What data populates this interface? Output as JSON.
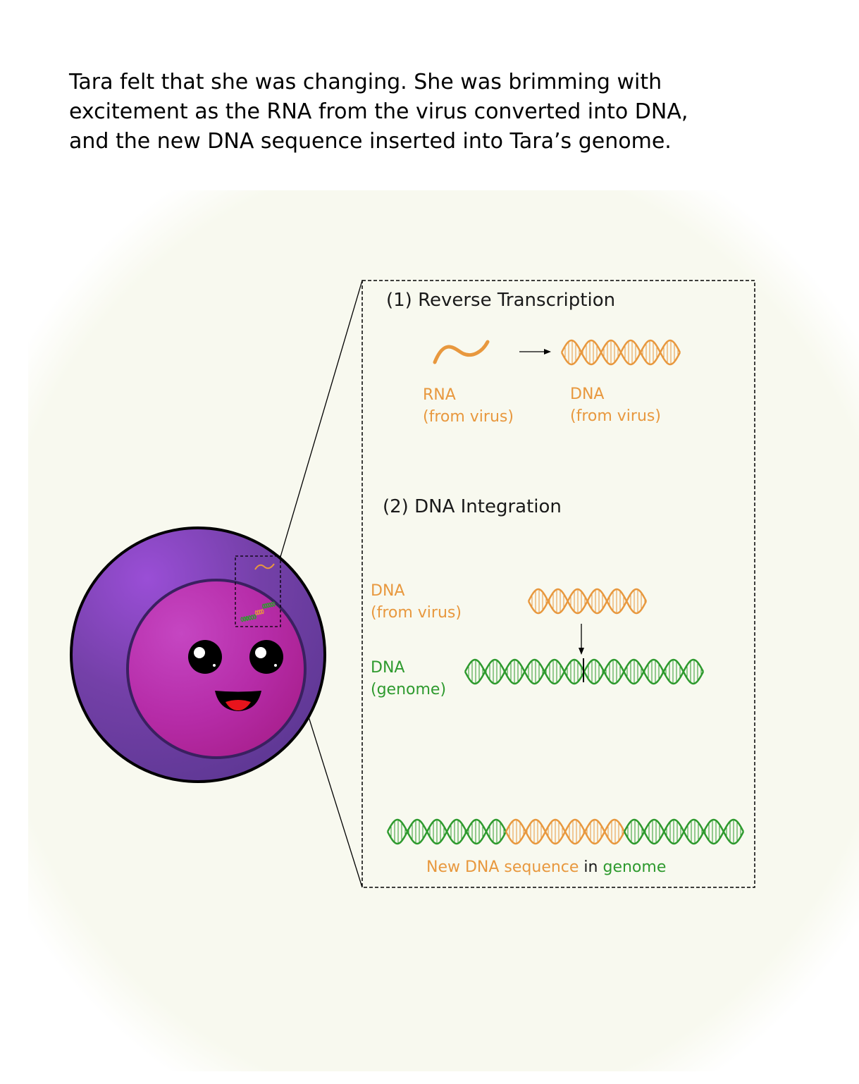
{
  "caption": {
    "line1": "Tara felt that she was changing. She was brimming with",
    "line2": "excitement as the RNA from the virus converted into DNA,",
    "line3": "and the new DNA sequence inserted into Tara’s genome."
  },
  "colors": {
    "virus": "#e8983e",
    "genome": "#2e9a2e",
    "cell_outer": "#6a3b9a",
    "nucleus": "#b0269a",
    "background": "#f8f9ef"
  },
  "inset": {
    "step1": {
      "title": "(1) Reverse Transcription",
      "rna_label": "RNA",
      "rna_sub": "(from virus)",
      "dna_label": "DNA",
      "dna_sub": "(from virus)"
    },
    "step2": {
      "title": "(2) DNA Integration",
      "virus_dna_label": "DNA",
      "virus_dna_sub": "(from virus)",
      "genome_dna_label": "DNA",
      "genome_dna_sub": "(genome)"
    },
    "result": {
      "part1": "New DNA sequence",
      "part2": " in ",
      "part3": "genome"
    }
  }
}
